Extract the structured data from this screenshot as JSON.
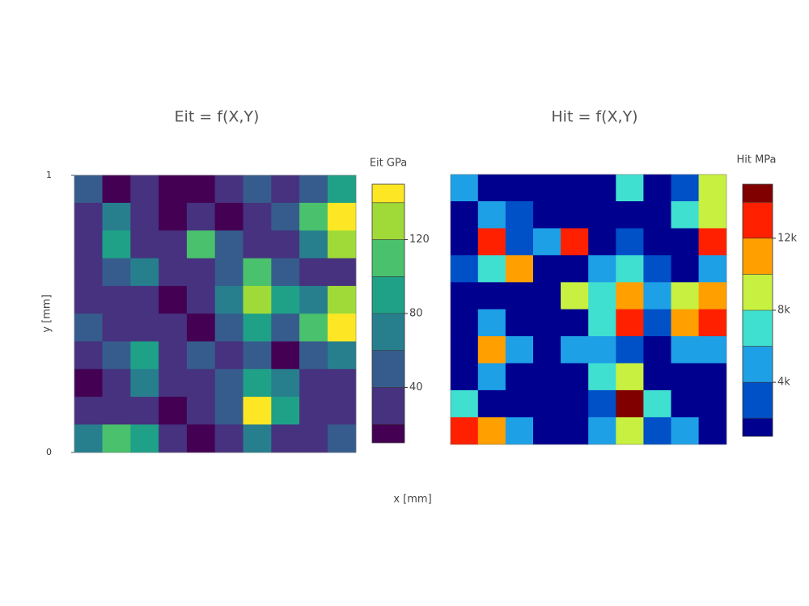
{
  "chart_data": [
    {
      "type": "contour",
      "title": "Eit = f(X,Y)",
      "colorbar_title": "Eit GPa",
      "x_label": "x [mm]",
      "y_label": "y [mm]",
      "xlim": [
        0,
        1
      ],
      "ylim": [
        0,
        1
      ],
      "yticks": [
        0,
        1
      ],
      "x": [
        0.05,
        0.15,
        0.25,
        0.35,
        0.45,
        0.55,
        0.65,
        0.75,
        0.85,
        0.95
      ],
      "y": [
        0.95,
        0.85,
        0.75,
        0.65,
        0.55,
        0.45,
        0.35,
        0.25,
        0.15,
        0.05
      ],
      "z": [
        [
          45,
          15,
          25,
          15,
          15,
          35,
          55,
          25,
          50,
          90
        ],
        [
          30,
          60,
          30,
          15,
          30,
          15,
          25,
          40,
          110,
          140
        ],
        [
          35,
          80,
          25,
          25,
          110,
          40,
          30,
          25,
          60,
          120
        ],
        [
          25,
          50,
          70,
          30,
          20,
          45,
          110,
          40,
          25,
          35
        ],
        [
          20,
          30,
          25,
          15,
          25,
          60,
          130,
          80,
          60,
          120
        ],
        [
          45,
          20,
          35,
          30,
          15,
          40,
          90,
          45,
          110,
          145
        ],
        [
          30,
          50,
          90,
          35,
          45,
          30,
          40,
          15,
          40,
          60
        ],
        [
          15,
          35,
          60,
          25,
          20,
          55,
          90,
          60,
          25,
          20
        ],
        [
          30,
          25,
          20,
          15,
          25,
          45,
          140,
          90,
          30,
          25
        ],
        [
          70,
          115,
          80,
          30,
          15,
          20,
          60,
          35,
          25,
          55
        ]
      ],
      "zlim": [
        10,
        150
      ],
      "levels": [
        20,
        40,
        60,
        80,
        100,
        120,
        140
      ],
      "zticks": [
        40,
        80,
        120
      ],
      "colors": [
        "#440154",
        "#46327e",
        "#365c8d",
        "#277f8e",
        "#1fa187",
        "#4ac16d",
        "#a0da39",
        "#fde725"
      ]
    },
    {
      "type": "contour",
      "title": "Hit = f(X,Y)",
      "colorbar_title": "Hit MPa",
      "xlim": [
        0,
        1
      ],
      "ylim": [
        0,
        1
      ],
      "x": [
        0.05,
        0.15,
        0.25,
        0.35,
        0.45,
        0.55,
        0.65,
        0.75,
        0.85,
        0.95
      ],
      "y": [
        0.95,
        0.85,
        0.75,
        0.65,
        0.55,
        0.45,
        0.35,
        0.25,
        0.15,
        0.05
      ],
      "z": [
        [
          5000,
          1500,
          1500,
          1500,
          1500,
          1500,
          7000,
          1500,
          3500,
          8000
        ],
        [
          1500,
          5000,
          2500,
          1500,
          1500,
          1500,
          1500,
          1500,
          6000,
          9000
        ],
        [
          1500,
          13000,
          3000,
          5000,
          12000,
          1500,
          2500,
          1500,
          1500,
          13000
        ],
        [
          2500,
          6000,
          11000,
          1500,
          1500,
          5000,
          7000,
          3500,
          1500,
          5000
        ],
        [
          1500,
          1500,
          1500,
          1500,
          9000,
          6000,
          11000,
          5000,
          8000,
          11000
        ],
        [
          1500,
          4000,
          1500,
          1500,
          1500,
          6000,
          12000,
          3000,
          11000,
          13000
        ],
        [
          1500,
          10000,
          5000,
          1500,
          4500,
          4000,
          3000,
          1500,
          5000,
          5000
        ],
        [
          1500,
          5000,
          1500,
          1500,
          1500,
          6000,
          9000,
          1500,
          1500,
          1500
        ],
        [
          6000,
          1500,
          1500,
          1500,
          1500,
          3500,
          14000,
          7000,
          1500,
          1500
        ],
        [
          13000,
          11000,
          5000,
          1500,
          1500,
          5000,
          8000,
          3500,
          5000,
          1500
        ]
      ],
      "zlim": [
        1000,
        15000
      ],
      "levels": [
        2000,
        4000,
        6000,
        8000,
        10000,
        12000,
        14000
      ],
      "zticks": [
        {
          "value": 4000,
          "label": "4k"
        },
        {
          "value": 8000,
          "label": "8k"
        },
        {
          "value": 12000,
          "label": "12k"
        }
      ],
      "colors": [
        "#00008f",
        "#0050c8",
        "#1ea0e6",
        "#40e0d0",
        "#c8f040",
        "#ffa000",
        "#ff2000",
        "#800000"
      ]
    }
  ]
}
